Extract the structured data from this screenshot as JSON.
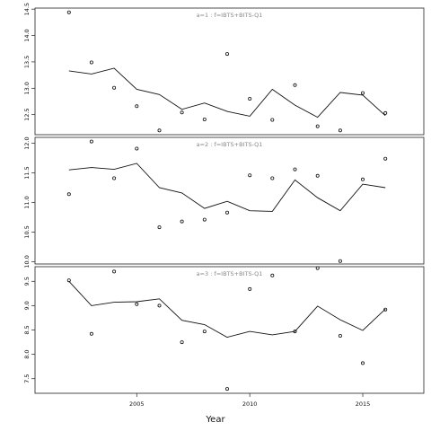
{
  "chart_data": [
    {
      "type": "scatter",
      "title": "a=1 : f=IBTS+BITS-Q1",
      "xlabel": "",
      "ylabel": "",
      "xlim": [
        2000.5,
        2017.7
      ],
      "ylim": [
        12.12,
        14.52
      ],
      "yticks": [
        "12.5",
        "13.0",
        "13.5",
        "14.0",
        "14.5"
      ],
      "observed": {
        "x": [
          2002,
          2003,
          2004,
          2005,
          2006,
          2007,
          2008,
          2009,
          2010,
          2011,
          2012,
          2013,
          2014,
          2015,
          2016
        ],
        "y": [
          14.44,
          13.49,
          13.01,
          12.66,
          12.2,
          12.54,
          12.41,
          13.65,
          12.8,
          12.4,
          13.06,
          12.28,
          12.2,
          12.91,
          12.53
        ]
      },
      "fitted": {
        "x": [
          2002,
          2003,
          2004,
          2005,
          2006,
          2007,
          2008,
          2009,
          2010,
          2011,
          2012,
          2013,
          2014,
          2015,
          2016
        ],
        "y": [
          13.33,
          13.27,
          13.38,
          12.98,
          12.88,
          12.6,
          12.72,
          12.56,
          12.47,
          12.98,
          12.68,
          12.45,
          12.92,
          12.87,
          12.48
        ]
      }
    },
    {
      "type": "scatter",
      "title": "a=2 : f=IBTS+BITS-Q1",
      "xlabel": "",
      "ylabel": "",
      "xlim": [
        2000.5,
        2017.7
      ],
      "ylim": [
        9.96,
        12.1
      ],
      "yticks": [
        "10.0",
        "10.5",
        "11.0",
        "11.5",
        "12.0"
      ],
      "observed": {
        "x": [
          2002,
          2003,
          2004,
          2005,
          2006,
          2007,
          2008,
          2009,
          2010,
          2011,
          2012,
          2013,
          2014,
          2015,
          2016
        ],
        "y": [
          11.14,
          12.03,
          11.41,
          11.91,
          10.58,
          10.68,
          10.71,
          10.83,
          11.46,
          11.41,
          11.56,
          11.45,
          10.01,
          11.39,
          11.74
        ]
      },
      "fitted": {
        "x": [
          2002,
          2003,
          2004,
          2005,
          2006,
          2007,
          2008,
          2009,
          2010,
          2011,
          2012,
          2013,
          2014,
          2015,
          2016
        ],
        "y": [
          11.55,
          11.59,
          11.56,
          11.66,
          11.25,
          11.16,
          10.9,
          11.02,
          10.86,
          10.85,
          11.38,
          11.08,
          10.86,
          11.31,
          11.25
        ]
      }
    },
    {
      "type": "scatter",
      "title": "a=3 : f=IBTS+BITS-Q1",
      "xlabel": "Year",
      "ylabel": "",
      "xlim": [
        2000.5,
        2017.7
      ],
      "ylim": [
        7.2,
        9.8
      ],
      "yticks": [
        "7.5",
        "8.0",
        "8.5",
        "9.0",
        "9.5"
      ],
      "xticks": [
        "2005",
        "2010",
        "2015"
      ],
      "observed": {
        "x": [
          2002,
          2003,
          2004,
          2005,
          2006,
          2007,
          2008,
          2009,
          2010,
          2011,
          2012,
          2013,
          2014,
          2015,
          2016
        ],
        "y": [
          9.52,
          8.42,
          9.7,
          9.03,
          9.0,
          8.25,
          8.47,
          7.29,
          9.34,
          9.62,
          8.47,
          9.77,
          8.38,
          7.82,
          8.92
        ]
      },
      "fitted": {
        "x": [
          2002,
          2003,
          2004,
          2005,
          2006,
          2007,
          2008,
          2009,
          2010,
          2011,
          2012,
          2013,
          2014,
          2015,
          2016
        ],
        "y": [
          9.5,
          9.0,
          9.07,
          9.08,
          9.14,
          8.7,
          8.61,
          8.35,
          8.47,
          8.4,
          8.47,
          8.99,
          8.71,
          8.49,
          8.93
        ]
      }
    }
  ]
}
